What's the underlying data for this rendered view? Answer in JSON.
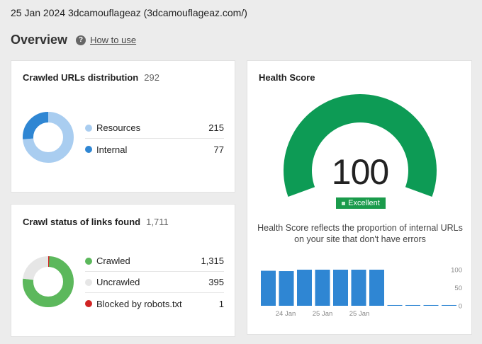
{
  "header": {
    "title": "25 Jan 2024 3dcamouflageaz (3dcamouflageaz.com/)"
  },
  "overview": {
    "title": "Overview",
    "help_icon": "question-circle-icon",
    "help_glyph": "?",
    "how_to_use": "How to use"
  },
  "crawled_urls": {
    "title": "Crawled URLs distribution",
    "total": "292",
    "items": [
      {
        "label": "Resources",
        "value": "215",
        "count": 215,
        "color": "#a9cdf0"
      },
      {
        "label": "Internal",
        "value": "77",
        "count": 77,
        "color": "#2f86d3"
      }
    ]
  },
  "crawl_status": {
    "title": "Crawl status of links found",
    "total": "1,711",
    "items": [
      {
        "label": "Crawled",
        "value": "1,315",
        "count": 1315,
        "color": "#5cb85c"
      },
      {
        "label": "Uncrawled",
        "value": "395",
        "count": 395,
        "color": "#e6e6e6"
      },
      {
        "label": "Blocked by robots.txt",
        "value": "1",
        "count": 1,
        "color": "#d02424"
      }
    ]
  },
  "health_score": {
    "title": "Health Score",
    "score": "100",
    "score_fraction": 1.0,
    "rating": "Excellent",
    "description": "Health Score reflects the proportion of internal URLs on your site that don't have errors",
    "gauge_color": "#0d9b55"
  },
  "chart_data": {
    "type": "bar",
    "title": "",
    "xlabel": "",
    "ylabel": "",
    "ylim": [
      0,
      100
    ],
    "y_ticks": [
      "0",
      "50",
      "100"
    ],
    "x_tick_labels": [
      "24 Jan",
      "25 Jan",
      "25 Jan"
    ],
    "values": [
      97,
      96,
      100,
      100,
      100,
      100,
      100,
      2,
      2,
      2,
      2
    ],
    "bar_color": "#2f86d3"
  }
}
